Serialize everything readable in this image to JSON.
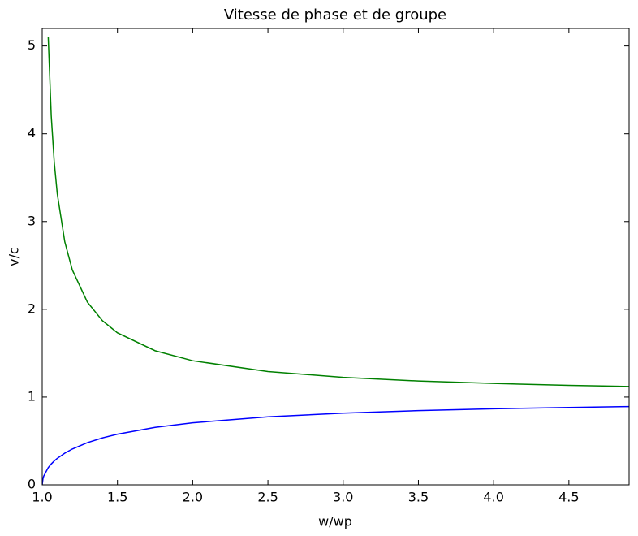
{
  "chart_data": {
    "type": "line",
    "title": "Vitesse de phase et de groupe",
    "x_label": "w/wp",
    "y_label": "v/c",
    "x": [
      1.0,
      1.005,
      1.01,
      1.04,
      1.06,
      1.08,
      1.1,
      1.15,
      1.2,
      1.3,
      1.4,
      1.5,
      1.75,
      2.0,
      2.5,
      3.0,
      3.5,
      4.0,
      4.5,
      4.9
    ],
    "series": [
      {
        "color": "#0000ff",
        "values": [
          0,
          0.0705,
          0.0995,
          0.1961,
          0.2379,
          0.2722,
          0.3015,
          0.3612,
          0.4082,
          0.4804,
          0.5345,
          0.5774,
          0.6547,
          0.7071,
          0.7746,
          0.8165,
          0.8452,
          0.866,
          0.8819,
          0.8921
        ]
      },
      {
        "color": "#008000",
        "values": [
          null,
          null,
          null,
          5.099,
          4.203,
          3.674,
          3.317,
          2.769,
          2.449,
          2.082,
          1.871,
          1.732,
          1.528,
          1.414,
          1.291,
          1.225,
          1.183,
          1.155,
          1.134,
          1.121
        ]
      }
    ],
    "xlim": [
      1.0,
      4.9
    ],
    "xticks": [
      {
        "value": 1,
        "label": "1.0"
      },
      1.5,
      {
        "value": 2,
        "label": "2.0"
      },
      2.5,
      {
        "value": 3,
        "label": "3.0"
      },
      3.5,
      {
        "value": 4,
        "label": "4.0"
      },
      4.5
    ],
    "ylim": [
      0,
      5.2
    ],
    "yticks": [
      0,
      1,
      2,
      3,
      4,
      5
    ]
  }
}
